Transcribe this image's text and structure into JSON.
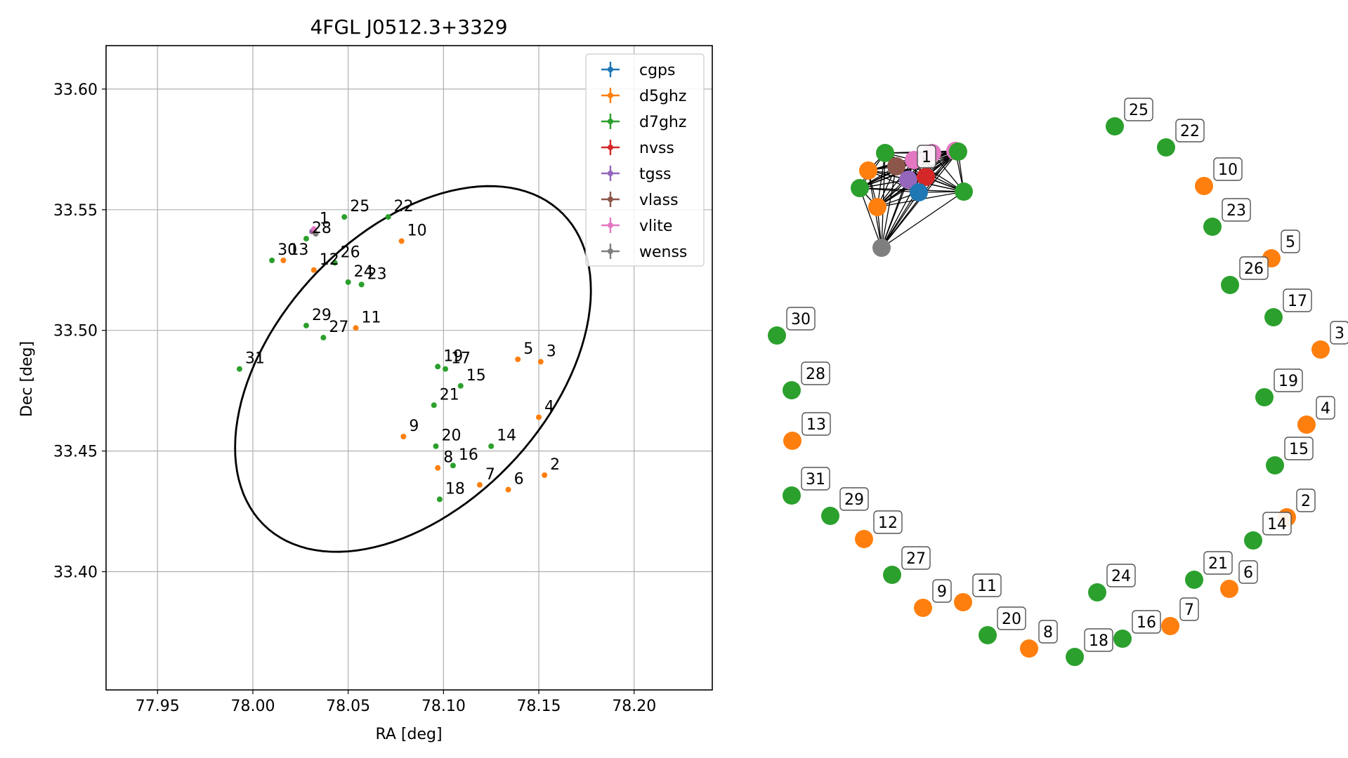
{
  "chart_data": [
    {
      "type": "scatter",
      "title": "4FGL J0512.3+3329",
      "xlabel": "RA [deg]",
      "ylabel": "Dec [deg]",
      "xlim": [
        77.923,
        78.241
      ],
      "ylim": [
        33.351,
        33.618
      ],
      "xticks": [
        {
          "v": 77.95,
          "label": "77.95"
        },
        {
          "v": 78.0,
          "label": "78.00"
        },
        {
          "v": 78.05,
          "label": "78.05"
        },
        {
          "v": 78.1,
          "label": "78.10"
        },
        {
          "v": 78.15,
          "label": "78.15"
        },
        {
          "v": 78.2,
          "label": "78.20"
        }
      ],
      "yticks": [
        {
          "v": 33.4,
          "label": "33.40"
        },
        {
          "v": 33.45,
          "label": "33.45"
        },
        {
          "v": 33.5,
          "label": "33.50"
        },
        {
          "v": 33.55,
          "label": "33.55"
        },
        {
          "v": 33.6,
          "label": "33.60"
        }
      ],
      "grid": true,
      "legend_position": "top-right",
      "ellipse": {
        "center_ra": 78.084,
        "center_dec": 33.484,
        "semi_major_deg": 0.103,
        "semi_minor_deg": 0.062,
        "angle_deg": 32
      },
      "series": [
        {
          "name": "cgps",
          "color": "#1f77b4",
          "points": []
        },
        {
          "name": "d5ghz",
          "color": "#ff7f0e",
          "points": [
            {
              "label": "10",
              "ra": 78.078,
              "dec": 33.537
            },
            {
              "label": "13",
              "ra": 78.016,
              "dec": 33.529
            },
            {
              "label": "12",
              "ra": 78.032,
              "dec": 33.525
            },
            {
              "label": "11",
              "ra": 78.054,
              "dec": 33.501
            },
            {
              "label": "5",
              "ra": 78.139,
              "dec": 33.488
            },
            {
              "label": "3",
              "ra": 78.151,
              "dec": 33.487
            },
            {
              "label": "4",
              "ra": 78.15,
              "dec": 33.464
            },
            {
              "label": "9",
              "ra": 78.079,
              "dec": 33.456
            },
            {
              "label": "8",
              "ra": 78.097,
              "dec": 33.443
            },
            {
              "label": "2",
              "ra": 78.153,
              "dec": 33.44
            },
            {
              "label": "7",
              "ra": 78.119,
              "dec": 33.436
            },
            {
              "label": "6",
              "ra": 78.134,
              "dec": 33.434
            }
          ]
        },
        {
          "name": "d7ghz",
          "color": "#2ca02c",
          "points": [
            {
              "label": "25",
              "ra": 78.048,
              "dec": 33.547
            },
            {
              "label": "22",
              "ra": 78.071,
              "dec": 33.547
            },
            {
              "label": "28",
              "ra": 78.028,
              "dec": 33.538
            },
            {
              "label": "30",
              "ra": 78.01,
              "dec": 33.529
            },
            {
              "label": "26",
              "ra": 78.043,
              "dec": 33.528
            },
            {
              "label": "24",
              "ra": 78.05,
              "dec": 33.52
            },
            {
              "label": "23",
              "ra": 78.057,
              "dec": 33.519
            },
            {
              "label": "29",
              "ra": 78.028,
              "dec": 33.502
            },
            {
              "label": "27",
              "ra": 78.037,
              "dec": 33.497
            },
            {
              "label": "31",
              "ra": 77.993,
              "dec": 33.484
            },
            {
              "label": "19",
              "ra": 78.097,
              "dec": 33.485
            },
            {
              "label": "17",
              "ra": 78.101,
              "dec": 33.484
            },
            {
              "label": "15",
              "ra": 78.109,
              "dec": 33.477
            },
            {
              "label": "21",
              "ra": 78.095,
              "dec": 33.469
            },
            {
              "label": "20",
              "ra": 78.096,
              "dec": 33.452
            },
            {
              "label": "14",
              "ra": 78.125,
              "dec": 33.452
            },
            {
              "label": "16",
              "ra": 78.105,
              "dec": 33.444
            },
            {
              "label": "18",
              "ra": 78.098,
              "dec": 33.43
            }
          ]
        },
        {
          "name": "nvss",
          "color": "#d62728",
          "points": [
            {
              "label": "",
              "ra": 78.032,
              "dec": 33.541
            }
          ]
        },
        {
          "name": "tgss",
          "color": "#9467bd",
          "points": [
            {
              "label": "",
              "ra": 78.031,
              "dec": 33.541
            }
          ]
        },
        {
          "name": "vlass",
          "color": "#8c564b",
          "points": [
            {
              "label": "",
              "ra": 78.032,
              "dec": 33.541
            }
          ]
        },
        {
          "name": "vlite",
          "color": "#e377c2",
          "points": [
            {
              "label": "1",
              "ra": 78.032,
              "dec": 33.542
            }
          ]
        },
        {
          "name": "wenss",
          "color": "#7f7f7f",
          "points": [
            {
              "label": "",
              "ra": 78.033,
              "dec": 33.54
            }
          ]
        }
      ]
    },
    {
      "type": "network",
      "hub_nodes": [
        {
          "color": "#e377c2"
        },
        {
          "color": "#e377c2"
        },
        {
          "color": "#e377c2"
        },
        {
          "color": "#2ca02c"
        },
        {
          "color": "#2ca02c"
        },
        {
          "color": "#2ca02c"
        },
        {
          "color": "#2ca02c"
        },
        {
          "color": "#ff7f0e"
        },
        {
          "color": "#ff7f0e"
        },
        {
          "color": "#8c564b"
        },
        {
          "color": "#9467bd"
        },
        {
          "color": "#d62728"
        },
        {
          "color": "#1f77b4"
        },
        {
          "color": "#7f7f7f"
        }
      ],
      "hub_label": "1",
      "ring_nodes": [
        {
          "label": "25",
          "color": "#2ca02c"
        },
        {
          "label": "22",
          "color": "#2ca02c"
        },
        {
          "label": "10",
          "color": "#ff7f0e"
        },
        {
          "label": "23",
          "color": "#2ca02c"
        },
        {
          "label": "5",
          "color": "#ff7f0e"
        },
        {
          "label": "26",
          "color": "#2ca02c"
        },
        {
          "label": "17",
          "color": "#2ca02c"
        },
        {
          "label": "3",
          "color": "#ff7f0e"
        },
        {
          "label": "19",
          "color": "#2ca02c"
        },
        {
          "label": "4",
          "color": "#ff7f0e"
        },
        {
          "label": "15",
          "color": "#2ca02c"
        },
        {
          "label": "2",
          "color": "#ff7f0e"
        },
        {
          "label": "14",
          "color": "#2ca02c"
        },
        {
          "label": "21",
          "color": "#2ca02c"
        },
        {
          "label": "6",
          "color": "#ff7f0e"
        },
        {
          "label": "7",
          "color": "#ff7f0e"
        },
        {
          "label": "16",
          "color": "#2ca02c"
        },
        {
          "label": "24",
          "color": "#2ca02c"
        },
        {
          "label": "18",
          "color": "#2ca02c"
        },
        {
          "label": "8",
          "color": "#ff7f0e"
        },
        {
          "label": "20",
          "color": "#2ca02c"
        },
        {
          "label": "11",
          "color": "#ff7f0e"
        },
        {
          "label": "9",
          "color": "#ff7f0e"
        },
        {
          "label": "27",
          "color": "#2ca02c"
        },
        {
          "label": "12",
          "color": "#ff7f0e"
        },
        {
          "label": "29",
          "color": "#2ca02c"
        },
        {
          "label": "31",
          "color": "#2ca02c"
        },
        {
          "label": "13",
          "color": "#ff7f0e"
        },
        {
          "label": "28",
          "color": "#2ca02c"
        },
        {
          "label": "30",
          "color": "#2ca02c"
        }
      ]
    }
  ]
}
